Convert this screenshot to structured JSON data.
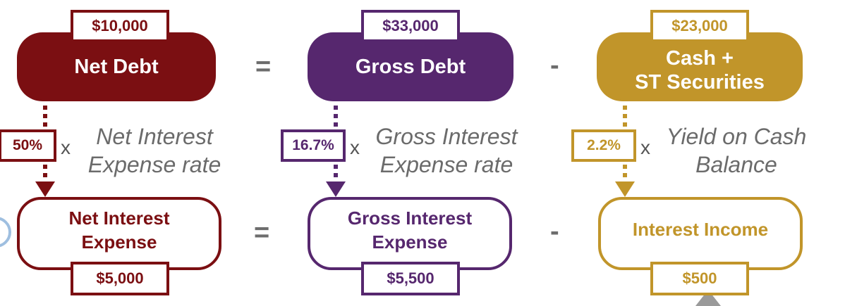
{
  "colors": {
    "net": "#7b0f12",
    "gross": "#56276e",
    "cash": "#c1952a",
    "operator": "#6d6d6d",
    "description": "#6b6b6b"
  },
  "top_row": {
    "net_debt": {
      "label": "Net Debt",
      "value": "$10,000"
    },
    "equals": "=",
    "gross_debt": {
      "label": "Gross Debt",
      "value": "$33,000"
    },
    "minus": "-",
    "cash": {
      "label_line1": "Cash +",
      "label_line2": "ST Securities",
      "value": "$23,000"
    }
  },
  "rates": {
    "net": {
      "value": "50%",
      "times": "x",
      "desc_line1": "Net Interest",
      "desc_line2": "Expense rate"
    },
    "gross": {
      "value": "16.7%",
      "times": "x",
      "desc_line1": "Gross Interest",
      "desc_line2": "Expense rate"
    },
    "cash": {
      "value": "2.2%",
      "times": "x",
      "desc_line1": "Yield on Cash",
      "desc_line2": "Balance"
    }
  },
  "bottom_row": {
    "net_interest": {
      "label_line1": "Net Interest",
      "label_line2": "Expense",
      "value": "$5,000"
    },
    "equals": "=",
    "gross_interest": {
      "label_line1": "Gross Interest",
      "label_line2": "Expense",
      "value": "$5,500"
    },
    "minus": "-",
    "interest_income": {
      "label": "Interest Income",
      "value": "$500"
    }
  }
}
